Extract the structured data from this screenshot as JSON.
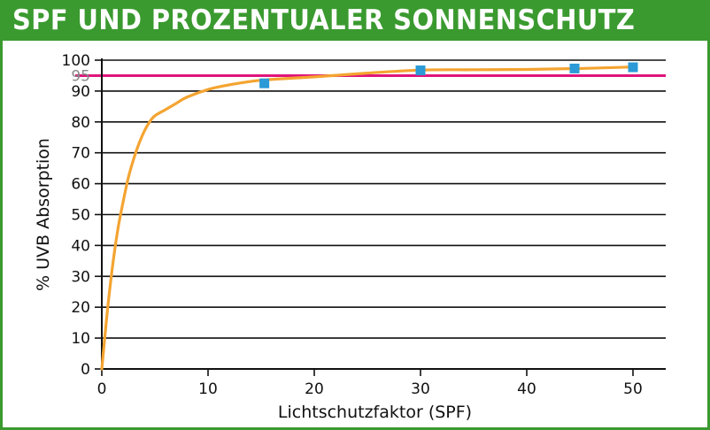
{
  "title": "SPF UND PROZENTUALER SONNENSCHUTZ",
  "colors": {
    "title_bar": "#3a9a2f",
    "curve": "#f4a431",
    "reference_line": "#e0147c",
    "markers": "#2b9ad6",
    "grid": "#111111"
  },
  "chart_data": {
    "type": "line",
    "title": "SPF UND PROZENTUALER SONNENSCHUTZ",
    "xlabel": "Lichtschutzfaktor (SPF)",
    "ylabel": "% UVB Absorption",
    "xlim": [
      0,
      53
    ],
    "ylim": [
      0,
      100
    ],
    "x_ticks": [
      0,
      10,
      20,
      30,
      40,
      50
    ],
    "y_ticks": [
      0,
      10,
      20,
      30,
      40,
      50,
      60,
      70,
      80,
      90,
      100
    ],
    "grid": "horizontal",
    "reference_line": {
      "y": 95,
      "label": "95"
    },
    "series": [
      {
        "style": "line",
        "x": [
          0,
          0.5,
          1,
          1.5,
          2,
          2.5,
          3,
          3.5,
          4,
          4.5,
          5,
          6,
          7,
          8,
          10,
          12,
          15,
          20,
          25,
          30,
          35,
          40,
          45,
          50
        ],
        "y": [
          0,
          18,
          33,
          45,
          54,
          62,
          68,
          73,
          77,
          80,
          82,
          84,
          86,
          88,
          90.5,
          92,
          93.5,
          94.6,
          95.8,
          96.8,
          96.9,
          97.0,
          97.3,
          97.8
        ]
      },
      {
        "style": "markers",
        "x": [
          15.3,
          30,
          44.5,
          50
        ],
        "y": [
          92.5,
          96.7,
          97.3,
          97.7
        ]
      }
    ]
  }
}
